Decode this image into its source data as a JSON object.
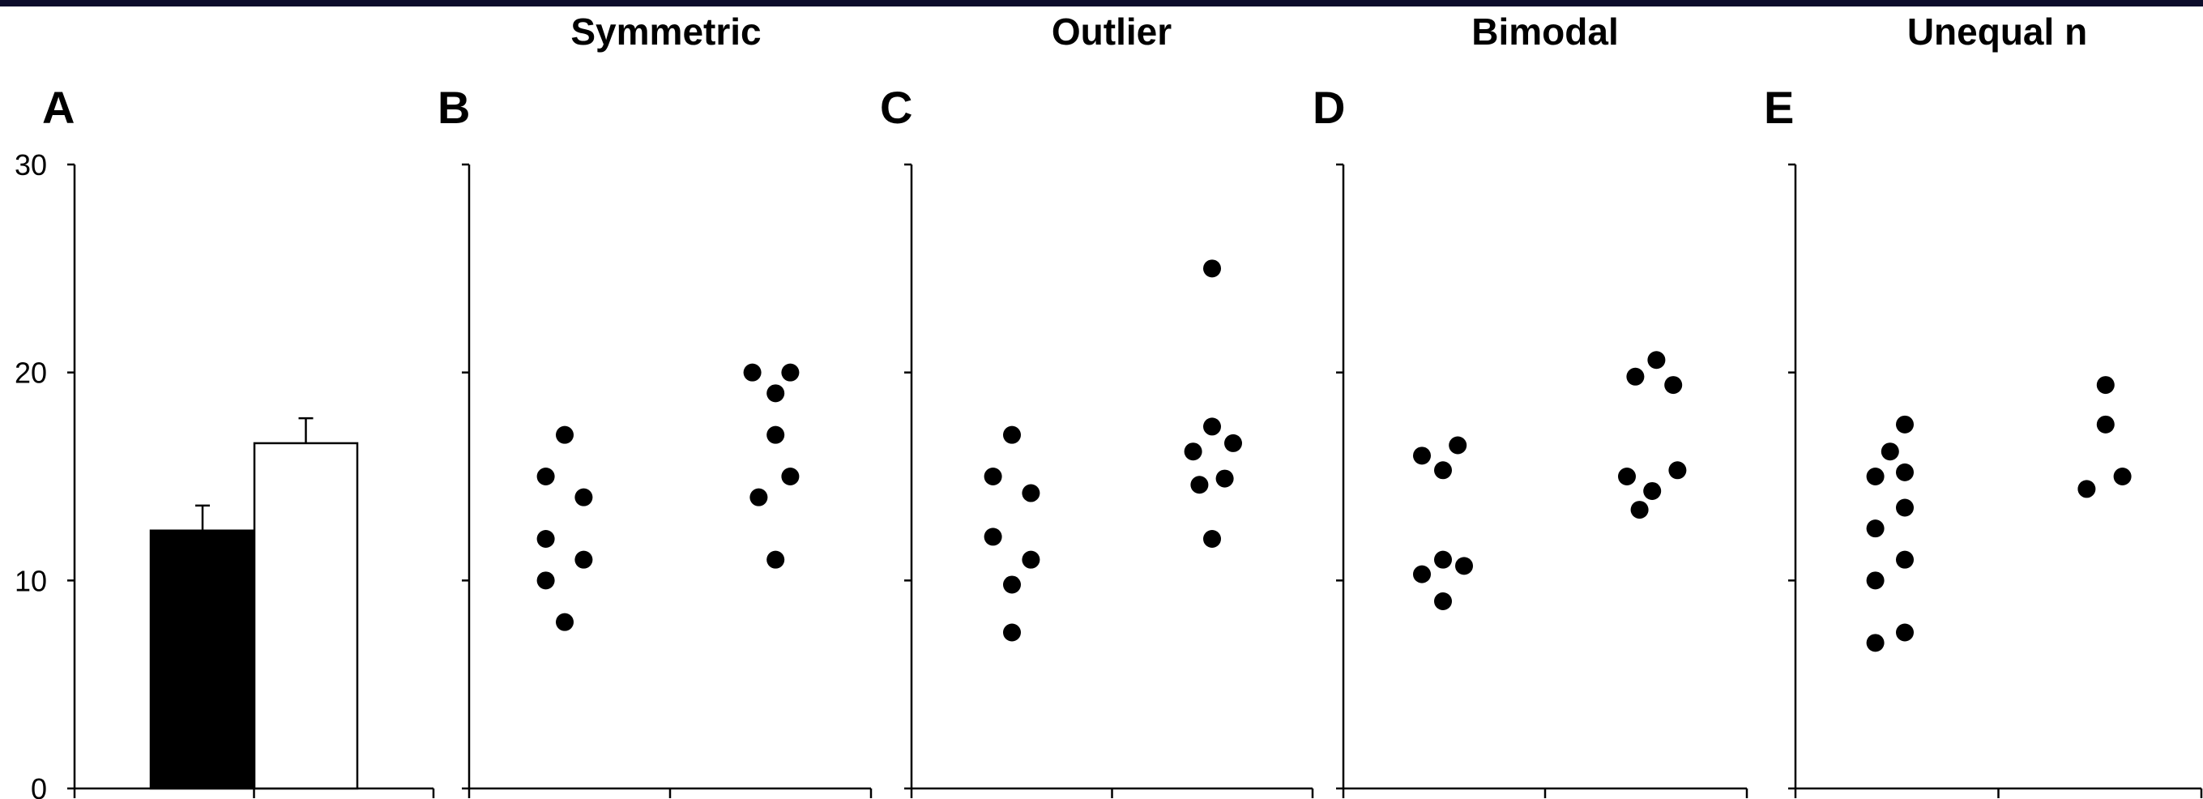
{
  "chart_data": [
    {
      "panel": "A",
      "type": "bar",
      "title": "",
      "ylim": [
        0,
        30
      ],
      "yticks": [
        "0",
        "10",
        "20",
        "30"
      ],
      "bars": [
        {
          "value": 12.4,
          "error": 1.2,
          "color": "#000000"
        },
        {
          "value": 16.6,
          "error": 1.2,
          "color": "#ffffff"
        }
      ]
    },
    {
      "panel": "B",
      "type": "scatter",
      "title": "Symmetric",
      "ylim": [
        0,
        30
      ],
      "groups": [
        {
          "points": [
            [
              -0.9,
              15
            ],
            [
              0,
              17
            ],
            [
              0.9,
              14
            ],
            [
              -0.9,
              12
            ],
            [
              0.9,
              11
            ],
            [
              -0.9,
              10
            ],
            [
              0,
              8
            ]
          ]
        },
        {
          "points": [
            [
              -0.9,
              20
            ],
            [
              0.9,
              20
            ],
            [
              0.2,
              19
            ],
            [
              0.2,
              17
            ],
            [
              -0.6,
              14
            ],
            [
              0.9,
              15
            ],
            [
              0.2,
              11
            ]
          ]
        }
      ]
    },
    {
      "panel": "C",
      "type": "scatter",
      "title": "Outlier",
      "ylim": [
        0,
        30
      ],
      "groups": [
        {
          "points": [
            [
              -0.9,
              15
            ],
            [
              0,
              17
            ],
            [
              0.9,
              14.2
            ],
            [
              -0.9,
              12.1
            ],
            [
              0.9,
              11
            ],
            [
              0,
              9.8
            ],
            [
              0,
              7.5
            ]
          ]
        },
        {
          "points": [
            [
              0,
              25
            ],
            [
              0,
              17.4
            ],
            [
              -0.9,
              16.2
            ],
            [
              1.0,
              16.6
            ],
            [
              -0.6,
              14.6
            ],
            [
              0.6,
              14.9
            ],
            [
              0,
              12
            ]
          ]
        }
      ]
    },
    {
      "panel": "D",
      "type": "scatter",
      "title": "Bimodal",
      "ylim": [
        0,
        30
      ],
      "groups": [
        {
          "points": [
            [
              -1.0,
              16
            ],
            [
              0.7,
              16.5
            ],
            [
              0,
              15.3
            ],
            [
              -1.0,
              10.3
            ],
            [
              0,
              11
            ],
            [
              1.0,
              10.7
            ],
            [
              0,
              9
            ]
          ]
        },
        {
          "points": [
            [
              -0.6,
              19.8
            ],
            [
              0.4,
              20.6
            ],
            [
              1.2,
              19.4
            ],
            [
              -1.0,
              15
            ],
            [
              1.4,
              15.3
            ],
            [
              0.2,
              14.3
            ],
            [
              -0.4,
              13.4
            ]
          ]
        }
      ]
    },
    {
      "panel": "E",
      "type": "scatter",
      "title": "Unequal n",
      "ylim": [
        0,
        30
      ],
      "groups": [
        {
          "points": [
            [
              0.5,
              17.5
            ],
            [
              -0.2,
              16.2
            ],
            [
              -0.9,
              15
            ],
            [
              0.5,
              15.2
            ],
            [
              0.5,
              13.5
            ],
            [
              -0.9,
              12.5
            ],
            [
              0.5,
              11
            ],
            [
              -0.9,
              10
            ],
            [
              0.5,
              7.5
            ],
            [
              -0.9,
              7
            ]
          ]
        },
        {
          "points": [
            [
              0.3,
              19.4
            ],
            [
              0.3,
              17.5
            ],
            [
              -0.6,
              14.4
            ],
            [
              1.1,
              15
            ]
          ]
        }
      ]
    }
  ]
}
